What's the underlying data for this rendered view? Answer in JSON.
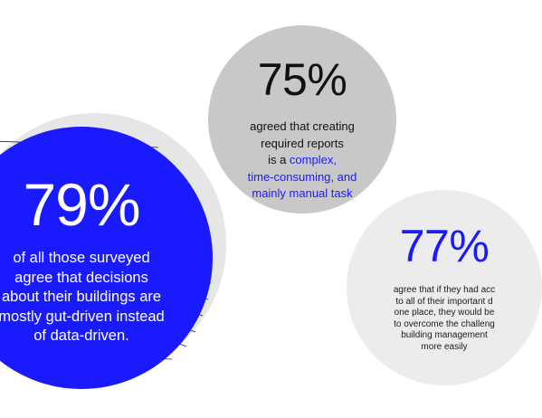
{
  "stat_79": {
    "value": "79%",
    "lines": [
      "of all those surveyed",
      "agree that decisions",
      "about their buildings are",
      "mostly gut-driven instead",
      "of data-driven."
    ]
  },
  "stat_75": {
    "value": "75%",
    "lines": [
      "agreed that creating",
      "required reports",
      "is a "
    ],
    "highlight_lines": [
      "complex,",
      "time-consuming, and",
      "mainly manual task"
    ]
  },
  "stat_77": {
    "value": "77%",
    "lines": [
      "agree that if they had acc",
      "to all of their important d",
      "one place, they would be",
      "to overcome the challeng",
      "building management",
      "more easily"
    ]
  },
  "colors": {
    "accent_blue": "#1a1aff",
    "gray_bubble": "#c8c8c8",
    "light_bubble": "#ececec"
  }
}
